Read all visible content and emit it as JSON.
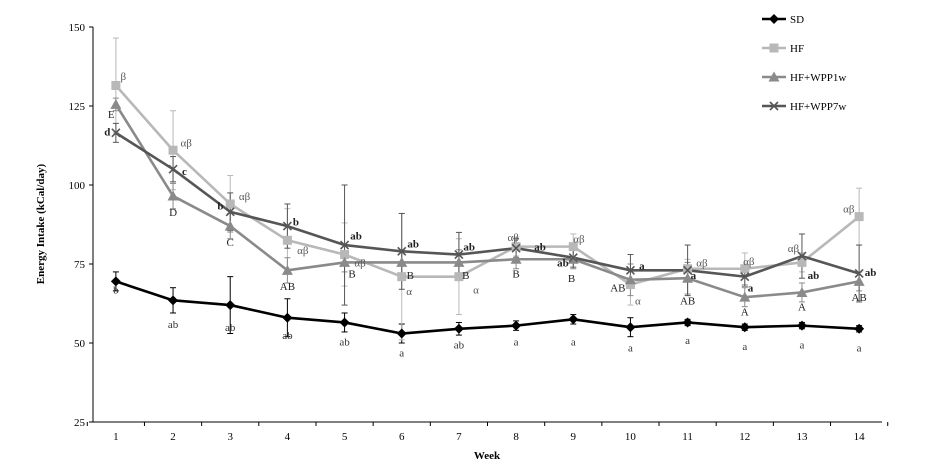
{
  "chart_data": {
    "type": "line",
    "title": "",
    "xlabel": "Week",
    "ylabel": "Energy Intake (kCal/day)",
    "xlim": [
      0.6,
      14.4
    ],
    "ylim": [
      25,
      150
    ],
    "yticks": [
      "25",
      "50",
      "75",
      "100",
      "125",
      "150"
    ],
    "ytick_values": [
      25,
      50,
      75,
      100,
      125,
      150
    ],
    "categories": [
      "1",
      "2",
      "3",
      "4",
      "5",
      "6",
      "7",
      "8",
      "9",
      "10",
      "11",
      "12",
      "13",
      "14"
    ],
    "x": [
      1,
      2,
      3,
      4,
      5,
      6,
      7,
      8,
      9,
      10,
      11,
      12,
      13,
      14
    ],
    "legend_position": "top-right",
    "series": [
      {
        "name": "SD",
        "color": "#000000",
        "marker": "diamond",
        "values": [
          69.5,
          63.5,
          62,
          58,
          56.5,
          53,
          54.5,
          55.5,
          57.5,
          55,
          56.5,
          55,
          55.5,
          54.5
        ],
        "errors": [
          3,
          4,
          9,
          6,
          3,
          3,
          2,
          1.5,
          1.5,
          3,
          1,
          1,
          1,
          1
        ]
      },
      {
        "name": "HF",
        "color": "#b8b8b8",
        "marker": "square",
        "values": [
          131.5,
          111,
          94,
          82.5,
          78,
          71,
          71,
          80.5,
          80.5,
          68.5,
          73.5,
          73.5,
          75.5,
          90
        ],
        "errors": [
          15,
          12.5,
          9,
          10,
          10,
          20,
          12,
          3,
          4,
          6.5,
          3,
          5,
          3,
          9
        ]
      },
      {
        "name": "HF+WPP1w",
        "color": "#8a8a8a",
        "marker": "triangle",
        "values": [
          125.5,
          96.5,
          87,
          73,
          75.5,
          75.5,
          75.5,
          76.5,
          76.5,
          70,
          70.5,
          64.5,
          66,
          69.5
        ],
        "errors": [
          2,
          4,
          4,
          4,
          3,
          4,
          4,
          3,
          3,
          5,
          5,
          3,
          3,
          3
        ]
      },
      {
        "name": "HF+WPP7w",
        "color": "#565656",
        "marker": "x",
        "values": [
          116.5,
          105,
          91.5,
          87,
          81,
          79,
          78,
          80,
          77,
          73,
          73,
          71,
          77.5,
          72
        ],
        "errors": [
          3,
          4,
          6,
          7,
          19,
          12,
          7,
          3,
          3,
          5,
          8,
          3,
          7,
          9
        ]
      }
    ],
    "annotations": [
      {
        "x": 1,
        "y": 67,
        "text": "b",
        "series": "SD"
      },
      {
        "x": 2,
        "y": 56,
        "text": "ab",
        "series": "SD"
      },
      {
        "x": 3,
        "y": 55,
        "text": "ab",
        "series": "SD"
      },
      {
        "x": 4,
        "y": 52.5,
        "text": "ab",
        "series": "SD"
      },
      {
        "x": 5,
        "y": 50.5,
        "text": "ab",
        "series": "SD"
      },
      {
        "x": 6,
        "y": 47,
        "text": "a",
        "series": "SD"
      },
      {
        "x": 7,
        "y": 49.5,
        "text": "ab",
        "series": "SD"
      },
      {
        "x": 8,
        "y": 50.5,
        "text": "a",
        "series": "SD"
      },
      {
        "x": 9,
        "y": 50.5,
        "text": "a",
        "series": "SD"
      },
      {
        "x": 10,
        "y": 48.5,
        "text": "a",
        "series": "SD"
      },
      {
        "x": 11,
        "y": 51,
        "text": "a",
        "series": "SD"
      },
      {
        "x": 12,
        "y": 49,
        "text": "a",
        "series": "SD"
      },
      {
        "x": 13,
        "y": 49.5,
        "text": "a",
        "series": "SD"
      },
      {
        "x": 14,
        "y": 48.5,
        "text": "a",
        "series": "SD"
      },
      {
        "x": 1.13,
        "y": 134.5,
        "text": "β",
        "series": "HF"
      },
      {
        "x": 2.23,
        "y": 113.5,
        "text": "αβ",
        "series": "HF"
      },
      {
        "x": 3.25,
        "y": 96.5,
        "text": "αβ",
        "series": "HF"
      },
      {
        "x": 4.27,
        "y": 79.5,
        "text": "αβ",
        "series": "HF"
      },
      {
        "x": 5.27,
        "y": 75.5,
        "text": "αβ",
        "series": "HF"
      },
      {
        "x": 6.13,
        "y": 66.5,
        "text": "α",
        "series": "HF"
      },
      {
        "x": 7.3,
        "y": 67,
        "text": "α",
        "series": "HF"
      },
      {
        "x": 7.95,
        "y": 83.5,
        "text": "αβ",
        "series": "HF"
      },
      {
        "x": 9.1,
        "y": 83,
        "text": "αβ",
        "series": "HF"
      },
      {
        "x": 10.13,
        "y": 63.5,
        "text": "α",
        "series": "HF"
      },
      {
        "x": 11.25,
        "y": 75.5,
        "text": "αβ",
        "series": "HF"
      },
      {
        "x": 12.07,
        "y": 76,
        "text": "αβ",
        "series": "HF"
      },
      {
        "x": 12.85,
        "y": 80,
        "text": "αβ",
        "series": "HF"
      },
      {
        "x": 13.82,
        "y": 92.5,
        "text": "αβ",
        "series": "HF"
      },
      {
        "x": 0.92,
        "y": 122.5,
        "text": "E",
        "series": "HF+WPP1w"
      },
      {
        "x": 2.0,
        "y": 91.5,
        "text": "D",
        "series": "HF+WPP1w"
      },
      {
        "x": 3.0,
        "y": 82,
        "text": "C",
        "series": "HF+WPP1w"
      },
      {
        "x": 4.0,
        "y": 68,
        "text": "AB",
        "series": "HF+WPP1w"
      },
      {
        "x": 5.13,
        "y": 72,
        "text": "B",
        "series": "HF+WPP1w"
      },
      {
        "x": 6.15,
        "y": 71.5,
        "text": "B",
        "series": "HF+WPP1w"
      },
      {
        "x": 7.12,
        "y": 71.5,
        "text": "B",
        "series": "HF+WPP1w"
      },
      {
        "x": 8.0,
        "y": 72,
        "text": "B",
        "series": "HF+WPP1w"
      },
      {
        "x": 8.97,
        "y": 70.5,
        "text": "B",
        "series": "HF+WPP1w"
      },
      {
        "x": 9.78,
        "y": 67.5,
        "text": "AB",
        "series": "HF+WPP1w"
      },
      {
        "x": 11.0,
        "y": 63.5,
        "text": "AB",
        "series": "HF+WPP1w"
      },
      {
        "x": 12.0,
        "y": 60,
        "text": "A",
        "series": "HF+WPP1w"
      },
      {
        "x": 13.0,
        "y": 61.5,
        "text": "A",
        "series": "HF+WPP1w"
      },
      {
        "x": 14.0,
        "y": 64.5,
        "text": "AB",
        "series": "HF+WPP1w"
      },
      {
        "x": 0.85,
        "y": 117,
        "text": "d",
        "series": "HF+WPP7w"
      },
      {
        "x": 2.2,
        "y": 104.5,
        "text": "c",
        "series": "HF+WPP7w"
      },
      {
        "x": 2.83,
        "y": 93.5,
        "text": "b",
        "series": "HF+WPP7w"
      },
      {
        "x": 4.15,
        "y": 88.5,
        "text": "b",
        "series": "HF+WPP7w"
      },
      {
        "x": 5.2,
        "y": 84,
        "text": "ab",
        "series": "HF+WPP7w"
      },
      {
        "x": 6.2,
        "y": 81.5,
        "text": "ab",
        "series": "HF+WPP7w"
      },
      {
        "x": 7.18,
        "y": 80.5,
        "text": "ab",
        "series": "HF+WPP7w"
      },
      {
        "x": 8.42,
        "y": 80.5,
        "text": "ab",
        "series": "HF+WPP7w"
      },
      {
        "x": 8.82,
        "y": 75.5,
        "text": "ab",
        "series": "HF+WPP7w"
      },
      {
        "x": 10.2,
        "y": 74.5,
        "text": "a",
        "series": "HF+WPP7w"
      },
      {
        "x": 11.1,
        "y": 71.5,
        "text": "a",
        "series": "HF+WPP7w"
      },
      {
        "x": 12.1,
        "y": 67.5,
        "text": "a",
        "series": "HF+WPP7w"
      },
      {
        "x": 13.2,
        "y": 71.5,
        "text": "ab",
        "series": "HF+WPP7w"
      },
      {
        "x": 14.2,
        "y": 72.5,
        "text": "ab",
        "series": "HF+WPP7w"
      }
    ]
  }
}
